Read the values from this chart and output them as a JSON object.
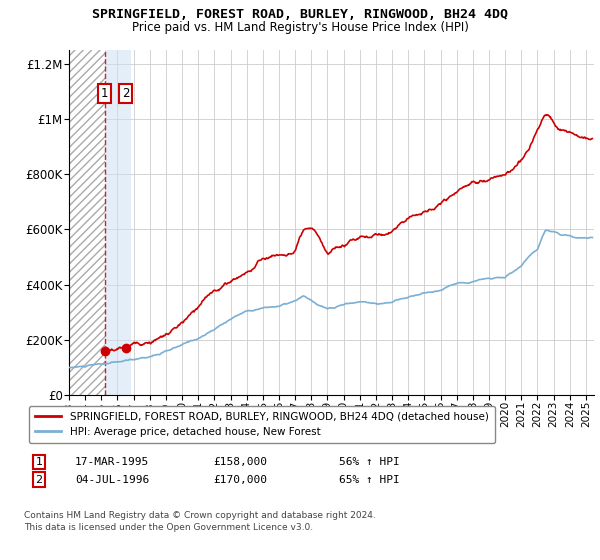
{
  "title": "SPRINGFIELD, FOREST ROAD, BURLEY, RINGWOOD, BH24 4DQ",
  "subtitle": "Price paid vs. HM Land Registry's House Price Index (HPI)",
  "legend_line1": "SPRINGFIELD, FOREST ROAD, BURLEY, RINGWOOD, BH24 4DQ (detached house)",
  "legend_line2": "HPI: Average price, detached house, New Forest",
  "purchase1_label": "1",
  "purchase1_date": "17-MAR-1995",
  "purchase1_price": 158000,
  "purchase1_x": 1995.21,
  "purchase1_pct": "56% ↑ HPI",
  "purchase2_label": "2",
  "purchase2_date": "04-JUL-1996",
  "purchase2_price": 170000,
  "purchase2_x": 1996.51,
  "purchase2_pct": "65% ↑ HPI",
  "footnote1": "Contains HM Land Registry data © Crown copyright and database right 2024.",
  "footnote2": "This data is licensed under the Open Government Licence v3.0.",
  "hpi_color": "#7bafd4",
  "price_color": "#cc0000",
  "ylim": [
    0,
    1250000
  ],
  "yticks": [
    0,
    200000,
    400000,
    600000,
    800000,
    1000000,
    1200000
  ],
  "ytick_labels": [
    "£0",
    "£200K",
    "£400K",
    "£600K",
    "£800K",
    "£1M",
    "£1.2M"
  ],
  "xmin": 1993.0,
  "xmax": 2025.5,
  "xtick_years": [
    1993,
    1994,
    1995,
    1996,
    1997,
    1998,
    1999,
    2000,
    2001,
    2002,
    2003,
    2004,
    2005,
    2006,
    2007,
    2008,
    2009,
    2010,
    2011,
    2012,
    2013,
    2014,
    2015,
    2016,
    2017,
    2018,
    2019,
    2020,
    2021,
    2022,
    2023,
    2024,
    2025
  ]
}
